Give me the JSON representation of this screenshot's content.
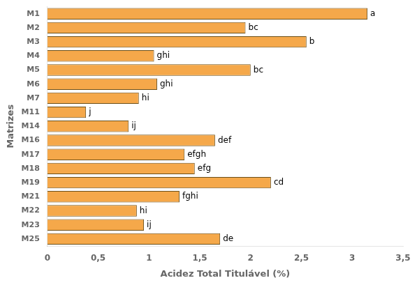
{
  "chart_data": {
    "type": "bar",
    "orientation": "horizontal",
    "categories": [
      "M1",
      "M2",
      "M3",
      "M4",
      "M5",
      "M6",
      "M7",
      "M11",
      "M14",
      "M16",
      "M17",
      "M18",
      "M19",
      "M21",
      "M22",
      "M23",
      "M25"
    ],
    "values": [
      3.15,
      1.95,
      2.55,
      1.05,
      2.0,
      1.08,
      0.9,
      0.38,
      0.8,
      1.65,
      1.35,
      1.45,
      2.2,
      1.3,
      0.88,
      0.95,
      1.7
    ],
    "annotations": [
      {
        "category": "M1",
        "text": "a"
      },
      {
        "category": "M2",
        "text": "bc"
      },
      {
        "category": "M3",
        "text": "b"
      },
      {
        "category": "M4",
        "text": "ghi"
      },
      {
        "category": "M5",
        "text": "bc"
      },
      {
        "category": "M6",
        "text": "ghi"
      },
      {
        "category": "M7",
        "text": "hi"
      },
      {
        "category": "M11",
        "text": "j"
      },
      {
        "category": "M14",
        "text": "ij"
      },
      {
        "category": "M16",
        "text": "def"
      },
      {
        "category": "M17",
        "text": "efgh"
      },
      {
        "category": "M18",
        "text": "efg"
      },
      {
        "category": "M19",
        "text": "cd"
      },
      {
        "category": "M21",
        "text": "fghi"
      },
      {
        "category": "M22",
        "text": "hi"
      },
      {
        "category": "M23",
        "text": "ij"
      },
      {
        "category": "M25",
        "text": "de"
      }
    ],
    "color": "#F5A84A",
    "xlabel": "Acidez Total Titulável (%)",
    "ylabel": "Matrizes",
    "xlim": [
      0,
      3.5
    ],
    "xticks": [
      0,
      {
        "value": 0.5,
        "label": "0,5"
      },
      1,
      {
        "value": 1.5,
        "label": "1,5"
      },
      2,
      {
        "value": 2.5,
        "label": "2,5"
      },
      3,
      {
        "value": 3.5,
        "label": "3,5"
      }
    ],
    "grid": false
  }
}
